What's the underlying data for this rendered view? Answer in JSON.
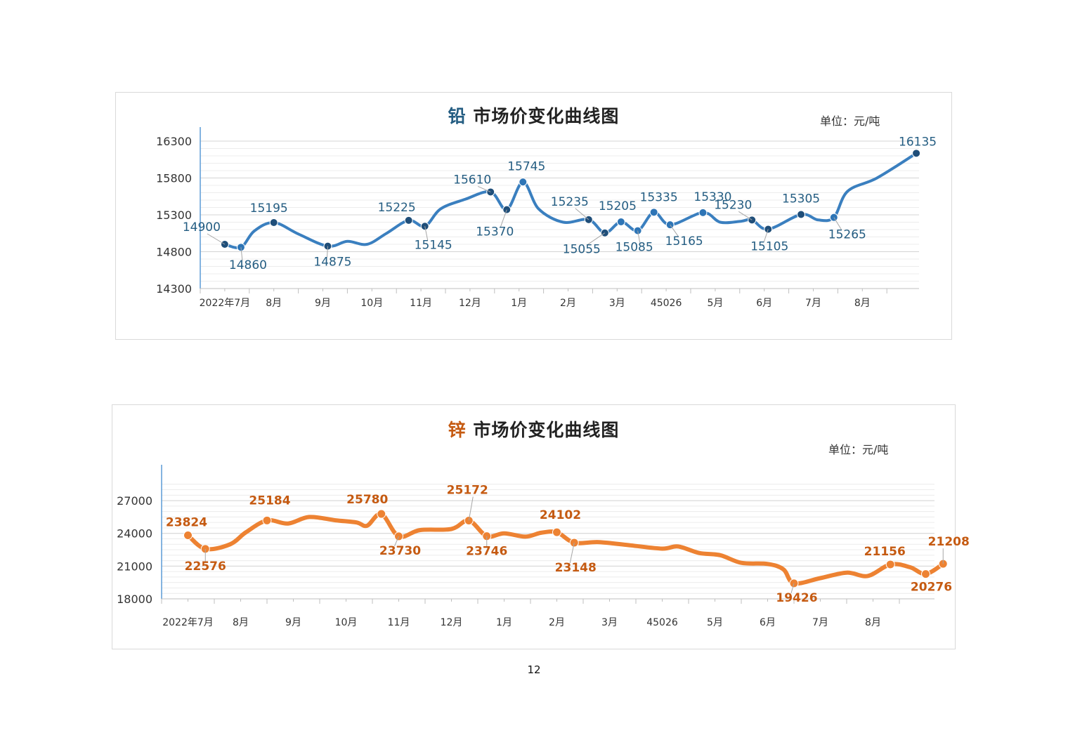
{
  "page_number": "12",
  "charts": [
    {
      "metal": "铅",
      "title_rest": " 市场价变化曲线图",
      "unit": "单位：元/吨"
    },
    {
      "metal": "锌",
      "title_rest": " 市场价变化曲线图",
      "unit": "单位：元/吨"
    }
  ],
  "chart_data": [
    {
      "type": "line",
      "title": "铅 市场价变化曲线图",
      "unit": "单位：元/吨",
      "ylim": [
        14300,
        16300
      ],
      "y_ticks": [
        14300,
        14800,
        15300,
        15800,
        16300
      ],
      "categories": [
        "2022年7月",
        "8月",
        "9月",
        "10月",
        "11月",
        "12月",
        "1月",
        "2月",
        "3月",
        "45026",
        "5月",
        "6月",
        "7月",
        "8月"
      ],
      "line_color": "#3a7fbf",
      "label_color": "#245d82",
      "grid": true,
      "points": [
        {
          "x": 0.5,
          "y": 14900,
          "label": "14900"
        },
        {
          "x": 0.83,
          "y": 14860,
          "label": "14860"
        },
        {
          "x": 1.5,
          "y": 15195,
          "label": "15195"
        },
        {
          "x": 2.6,
          "y": 14875,
          "label": "14875"
        },
        {
          "x": 4.25,
          "y": 15225,
          "label": "15225"
        },
        {
          "x": 4.58,
          "y": 15145,
          "label": "15145"
        },
        {
          "x": 5.92,
          "y": 15610,
          "label": "15610"
        },
        {
          "x": 6.25,
          "y": 15370,
          "label": "15370"
        },
        {
          "x": 6.58,
          "y": 15745,
          "label": "15745"
        },
        {
          "x": 7.92,
          "y": 15235,
          "label": "15235"
        },
        {
          "x": 8.25,
          "y": 15055,
          "label": "15055"
        },
        {
          "x": 8.58,
          "y": 15205,
          "label": "15205"
        },
        {
          "x": 8.92,
          "y": 15085,
          "label": "15085"
        },
        {
          "x": 9.25,
          "y": 15335,
          "label": "15335"
        },
        {
          "x": 9.58,
          "y": 15165,
          "label": "15165"
        },
        {
          "x": 10.25,
          "y": 15330,
          "label": "15330"
        },
        {
          "x": 11.25,
          "y": 15230,
          "label": "15230"
        },
        {
          "x": 11.58,
          "y": 15105,
          "label": "15105"
        },
        {
          "x": 12.25,
          "y": 15305,
          "label": "15305"
        },
        {
          "x": 12.92,
          "y": 15265,
          "label": "15265"
        },
        {
          "x": 14.6,
          "y": 16135,
          "label": "16135"
        }
      ],
      "curve": [
        [
          0.5,
          14900
        ],
        [
          0.83,
          14860
        ],
        [
          1.1,
          15080
        ],
        [
          1.5,
          15195
        ],
        [
          2.0,
          15040
        ],
        [
          2.6,
          14875
        ],
        [
          3.0,
          14940
        ],
        [
          3.4,
          14900
        ],
        [
          3.8,
          15050
        ],
        [
          4.25,
          15225
        ],
        [
          4.58,
          15145
        ],
        [
          4.9,
          15380
        ],
        [
          5.4,
          15510
        ],
        [
          5.92,
          15610
        ],
        [
          6.25,
          15370
        ],
        [
          6.58,
          15745
        ],
        [
          6.9,
          15380
        ],
        [
          7.4,
          15200
        ],
        [
          7.92,
          15235
        ],
        [
          8.25,
          15055
        ],
        [
          8.58,
          15205
        ],
        [
          8.92,
          15085
        ],
        [
          9.25,
          15335
        ],
        [
          9.58,
          15165
        ],
        [
          10.25,
          15330
        ],
        [
          10.6,
          15200
        ],
        [
          11.0,
          15210
        ],
        [
          11.25,
          15230
        ],
        [
          11.58,
          15105
        ],
        [
          12.25,
          15305
        ],
        [
          12.6,
          15230
        ],
        [
          12.92,
          15265
        ],
        [
          13.2,
          15620
        ],
        [
          13.8,
          15800
        ],
        [
          14.6,
          16135
        ]
      ]
    },
    {
      "type": "line",
      "title": "锌 市场价变化曲线图",
      "unit": "单位：元/吨",
      "ylim": [
        18000,
        29000
      ],
      "y_ticks": [
        18000,
        21000,
        24000,
        27000
      ],
      "categories": [
        "2022年7月",
        "8月",
        "9月",
        "10月",
        "11月",
        "12月",
        "1月",
        "2月",
        "3月",
        "45026",
        "5月",
        "6月",
        "7月",
        "8月"
      ],
      "line_color": "#ed8232",
      "label_color": "#c55a11",
      "grid": true,
      "points": [
        {
          "x": 0.5,
          "y": 23824,
          "label": "23824"
        },
        {
          "x": 0.83,
          "y": 22576,
          "label": "22576"
        },
        {
          "x": 2.0,
          "y": 25184,
          "label": "25184"
        },
        {
          "x": 4.17,
          "y": 25780,
          "label": "25780"
        },
        {
          "x": 4.5,
          "y": 23730,
          "label": "23730"
        },
        {
          "x": 5.83,
          "y": 25172,
          "label": "25172"
        },
        {
          "x": 6.17,
          "y": 23746,
          "label": "23746"
        },
        {
          "x": 7.5,
          "y": 24102,
          "label": "24102"
        },
        {
          "x": 7.83,
          "y": 23148,
          "label": "23148"
        },
        {
          "x": 12.0,
          "y": 19426,
          "label": "19426"
        },
        {
          "x": 13.83,
          "y": 21156,
          "label": "21156"
        },
        {
          "x": 14.5,
          "y": 20276,
          "label": "20276"
        },
        {
          "x": 14.83,
          "y": 21208,
          "label": "21208"
        }
      ],
      "curve": [
        [
          0.5,
          23824
        ],
        [
          0.83,
          22576
        ],
        [
          1.3,
          23000
        ],
        [
          1.6,
          24100
        ],
        [
          2.0,
          25184
        ],
        [
          2.4,
          24900
        ],
        [
          2.8,
          25500
        ],
        [
          3.3,
          25200
        ],
        [
          3.7,
          25000
        ],
        [
          3.9,
          24700
        ],
        [
          4.17,
          25780
        ],
        [
          4.5,
          23730
        ],
        [
          4.9,
          24300
        ],
        [
          5.5,
          24400
        ],
        [
          5.83,
          25172
        ],
        [
          6.17,
          23746
        ],
        [
          6.5,
          24000
        ],
        [
          6.9,
          23700
        ],
        [
          7.2,
          24050
        ],
        [
          7.5,
          24102
        ],
        [
          7.83,
          23148
        ],
        [
          8.3,
          23200
        ],
        [
          8.9,
          22900
        ],
        [
          9.5,
          22600
        ],
        [
          9.8,
          22800
        ],
        [
          10.2,
          22200
        ],
        [
          10.6,
          22000
        ],
        [
          11.0,
          21300
        ],
        [
          11.5,
          21200
        ],
        [
          11.8,
          20700
        ],
        [
          12.0,
          19426
        ],
        [
          12.5,
          19900
        ],
        [
          13.0,
          20400
        ],
        [
          13.4,
          20100
        ],
        [
          13.83,
          21156
        ],
        [
          14.2,
          20900
        ],
        [
          14.5,
          20276
        ],
        [
          14.83,
          21208
        ]
      ]
    }
  ]
}
